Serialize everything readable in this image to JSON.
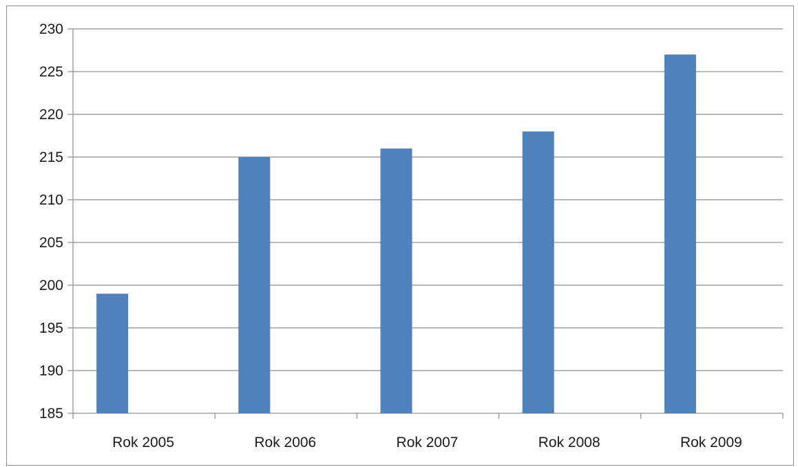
{
  "chart_data": {
    "type": "bar",
    "categories": [
      "Rok 2005",
      "Rok 2006",
      "Rok 2007",
      "Rok 2008",
      "Rok 2009"
    ],
    "values": [
      199,
      215,
      216,
      218,
      227
    ],
    "title": "",
    "xlabel": "",
    "ylabel": "",
    "ylim": [
      185,
      230
    ],
    "yticks": [
      "185",
      "190",
      "195",
      "200",
      "205",
      "210",
      "215",
      "220",
      "225",
      "230"
    ],
    "grid": true,
    "legend": "none",
    "bar_color": "#4f81bd",
    "gridline_color": "#8c8c8c"
  }
}
